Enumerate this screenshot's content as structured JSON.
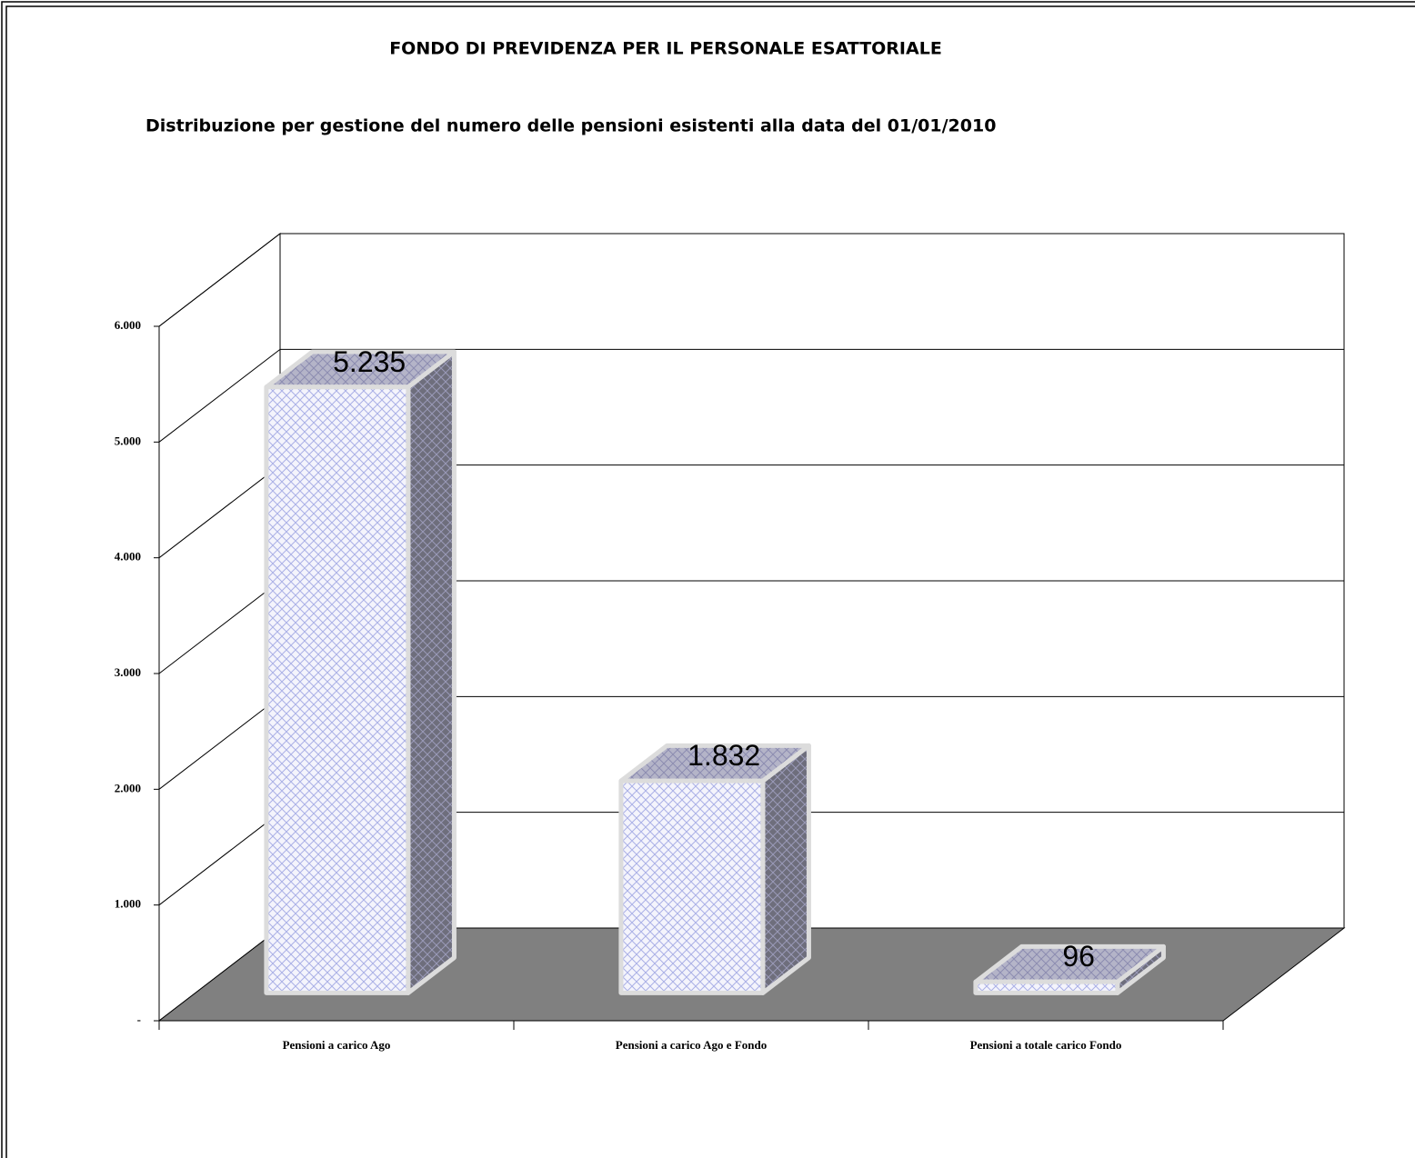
{
  "chart_data": {
    "type": "bar3d",
    "title": "FONDO DI PREVIDENZA PER IL PERSONALE ESATTORIALE",
    "subtitle": "Distribuzione per gestione del numero delle pensioni esistenti alla data del 01/01/2010",
    "categories": [
      "Pensioni a carico Ago",
      "Pensioni a carico Ago e Fondo",
      "Pensioni a totale carico Fondo"
    ],
    "values": [
      5235,
      1832,
      96
    ],
    "value_labels": [
      "5.235",
      "1.832",
      "96"
    ],
    "ylim": [
      0,
      6000
    ],
    "yticks": [
      {
        "value": 0,
        "label": "-"
      },
      {
        "value": 1000,
        "label": "1.000"
      },
      {
        "value": 2000,
        "label": "2.000"
      },
      {
        "value": 3000,
        "label": "3.000"
      },
      {
        "value": 4000,
        "label": "4.000"
      },
      {
        "value": 5000,
        "label": "5.000"
      },
      {
        "value": 6000,
        "label": "6.000"
      }
    ],
    "grid": true
  }
}
